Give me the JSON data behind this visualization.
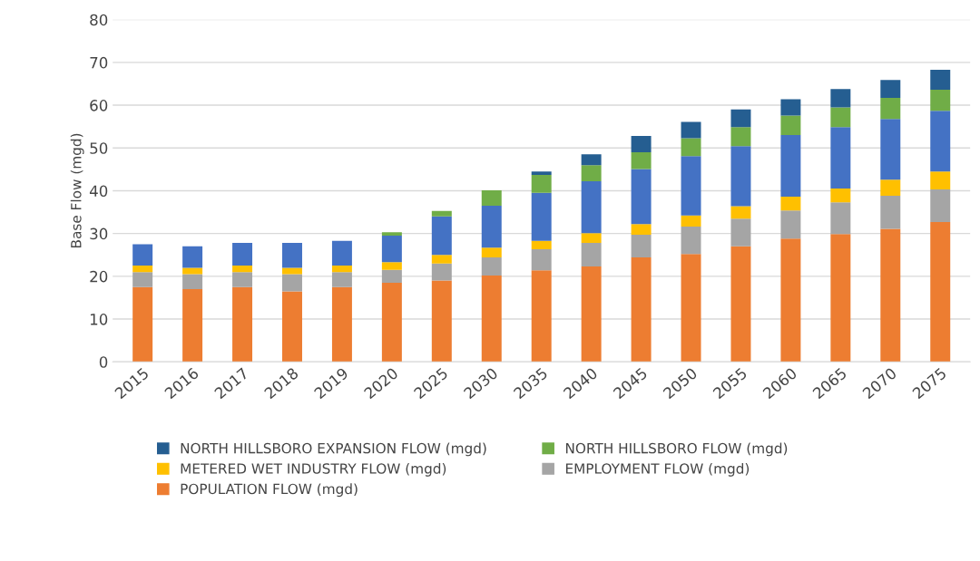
{
  "chart_data": {
    "type": "bar",
    "stacked": true,
    "ylabel": "Base Flow (mgd)",
    "categories": [
      "2015",
      "2016",
      "2017",
      "2018",
      "2019",
      "2020",
      "2025",
      "2030",
      "2035",
      "2040",
      "2045",
      "2050",
      "2055",
      "2060",
      "2065",
      "2070",
      "2075"
    ],
    "series": [
      {
        "name": "POPULATION FLOW (mgd)",
        "color": "#ed7d31",
        "values": [
          17.5,
          17,
          17.5,
          16.5,
          17.5,
          18.5,
          19,
          20.2,
          21.4,
          22.3,
          24.4,
          25.2,
          27.0,
          28.8,
          29.9,
          31.1,
          32.7
        ]
      },
      {
        "name": "EMPLOYMENT FLOW (mgd)",
        "color": "#a5a5a5",
        "values": [
          3.5,
          3.5,
          3.5,
          4,
          3.5,
          3,
          4,
          4.2,
          4.9,
          5.5,
          5.3,
          6.4,
          6.5,
          6.6,
          7.4,
          7.7,
          7.6
        ]
      },
      {
        "name": "METERED WET INDUSTRY FLOW (mgd)",
        "color": "#ffc000",
        "values": [
          1.5,
          1.5,
          1.5,
          1.5,
          1.5,
          1.8,
          2,
          2.3,
          2.0,
          2.3,
          2.5,
          2.6,
          2.9,
          3.2,
          3.2,
          3.8,
          4.2
        ]
      },
      {
        "color": "#4472c4",
        "values": [
          5,
          5,
          5.3,
          5.8,
          5.8,
          6.2,
          9,
          9.8,
          11.2,
          12.1,
          12.9,
          13.9,
          14.0,
          14.4,
          14.4,
          14.2,
          14.2
        ]
      },
      {
        "name": "NORTH HILLSBORO FLOW (mgd)",
        "color": "#70ad47",
        "values": [
          0,
          0,
          0,
          0,
          0,
          0.8,
          1.3,
          3.6,
          4.2,
          3.8,
          3.9,
          4.2,
          4.5,
          4.6,
          4.6,
          4.9,
          4.9
        ]
      },
      {
        "name": "NORTH HILLSBORO EXPANSION FLOW (mgd)",
        "color": "#255e91",
        "values": [
          0,
          0,
          0,
          0,
          0,
          0,
          0,
          0,
          0.8,
          2.5,
          3.8,
          3.8,
          4.1,
          3.8,
          4.3,
          4.2,
          4.7
        ]
      }
    ],
    "ylim": [
      0,
      80
    ],
    "yticks": [
      0,
      10,
      20,
      30,
      40,
      50,
      60,
      70,
      80
    ],
    "grid": "y",
    "legend": "bottom"
  }
}
